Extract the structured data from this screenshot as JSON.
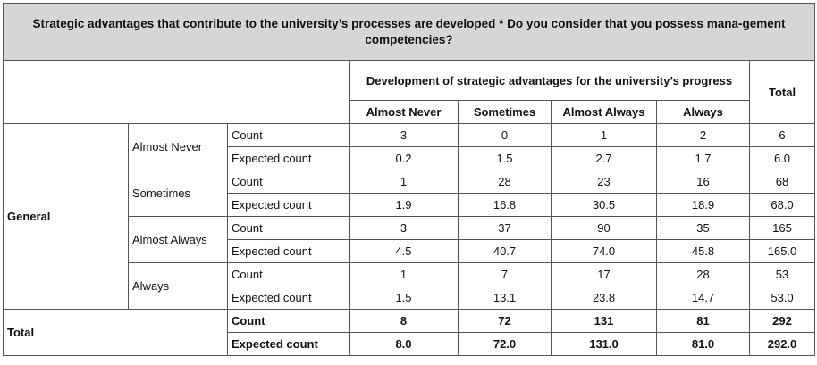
{
  "title": "Strategic advantages that contribute to the university’s processes are developed * Do you consider that you possess mana-gement competencies?",
  "column_group_label": "Development of strategic advantages for the university’s progress",
  "total_label": "Total",
  "columns": [
    "Almost Never",
    "Sometimes",
    "Almost Always",
    "Always"
  ],
  "row_group_label": "General",
  "rows": [
    {
      "label": "Almost Never",
      "count_label": "Count",
      "count": [
        "3",
        "0",
        "1",
        "2",
        "6"
      ],
      "expected_label": "Expected count",
      "expected": [
        "0.2",
        "1.5",
        "2.7",
        "1.7",
        "6.0"
      ]
    },
    {
      "label": "Sometimes",
      "count_label": "Count",
      "count": [
        "1",
        "28",
        "23",
        "16",
        "68"
      ],
      "expected_label": "Expected count",
      "expected": [
        "1.9",
        "16.8",
        "30.5",
        "18.9",
        "68.0"
      ]
    },
    {
      "label": "Almost Always",
      "count_label": "Count",
      "count": [
        "3",
        "37",
        "90",
        "35",
        "165"
      ],
      "expected_label": "Expected count",
      "expected": [
        "4.5",
        "40.7",
        "74.0",
        "45.8",
        "165.0"
      ]
    },
    {
      "label": "Always",
      "count_label": "Count",
      "count": [
        "1",
        "7",
        "17",
        "28",
        "53"
      ],
      "expected_label": "Expected count",
      "expected": [
        "1.5",
        "13.1",
        "23.8",
        "14.7",
        "53.0"
      ]
    }
  ],
  "total_row": {
    "label": "Total",
    "count_label": "Count",
    "count": [
      "8",
      "72",
      "131",
      "81",
      "292"
    ],
    "expected_label": "Expected count",
    "expected": [
      "8.0",
      "72.0",
      "131.0",
      "81.0",
      "292.0"
    ]
  }
}
